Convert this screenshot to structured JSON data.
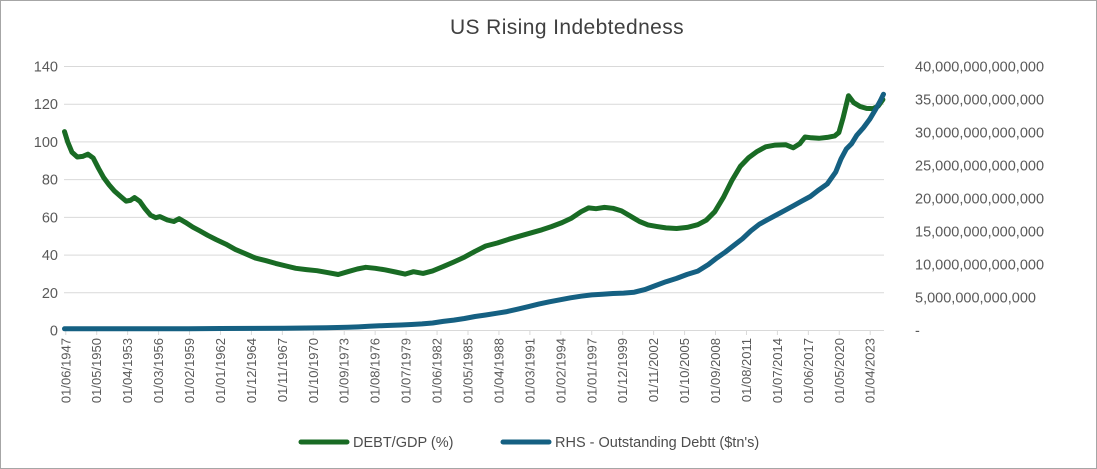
{
  "chart_data": {
    "type": "line",
    "title": "US Rising Indebtedness",
    "legend_position": "bottom",
    "grid": true,
    "legend": [
      {
        "label": "DEBT/GDP (%)",
        "color": "#196B24",
        "axis": "left"
      },
      {
        "label": "RHS - Outstanding Debtt ($tn's)",
        "color": "#156082",
        "axis": "right"
      }
    ],
    "left_axis": {
      "min": 0,
      "max": 140,
      "step": 20,
      "tick_labels": [
        "0",
        "20",
        "40",
        "60",
        "80",
        "100",
        "120",
        "140"
      ]
    },
    "right_axis": {
      "min": 0,
      "max": 40000000000000,
      "step": 5000000000000,
      "tick_labels": [
        "-",
        "5,000,000,000,000",
        "10,000,000,000,000",
        "15,000,000,000,000",
        "20,000,000,000,000",
        "25,000,000,000,000",
        "30,000,000,000,000",
        "35,000,000,000,000",
        "40,000,000,000,000"
      ]
    },
    "x_axis": {
      "tick_labels": [
        "01/06/1947",
        "01/05/1950",
        "01/04/1953",
        "01/03/1956",
        "01/02/1959",
        "01/01/1962",
        "01/12/1964",
        "01/11/1967",
        "01/10/1970",
        "01/09/1973",
        "01/08/1976",
        "01/07/1979",
        "01/06/1982",
        "01/05/1985",
        "01/04/1988",
        "01/03/1991",
        "01/02/1994",
        "01/01/1997",
        "01/12/1999",
        "01/11/2002",
        "01/10/2005",
        "01/09/2008",
        "01/08/2011",
        "01/07/2014",
        "01/06/2017",
        "01/05/2020",
        "01/04/2023"
      ],
      "first_tick_year": 1947.417,
      "tick_interval_years": 2.91667,
      "domain_start_year": 1947.25,
      "domain_end_year": 2024.55
    },
    "series": [
      {
        "name": "DEBT/GDP (%)",
        "axis": "left",
        "color": "#196B24",
        "points": [
          [
            1947.3,
            105.5
          ],
          [
            1947.6,
            100
          ],
          [
            1948.0,
            94.5
          ],
          [
            1948.5,
            92
          ],
          [
            1949.0,
            92.3
          ],
          [
            1949.5,
            93.5
          ],
          [
            1950.0,
            91.5
          ],
          [
            1950.5,
            86
          ],
          [
            1951.0,
            81
          ],
          [
            1951.5,
            77.2
          ],
          [
            1952.0,
            74
          ],
          [
            1952.6,
            71
          ],
          [
            1953.1,
            68.6
          ],
          [
            1953.5,
            69
          ],
          [
            1953.9,
            70.5
          ],
          [
            1954.4,
            68.5
          ],
          [
            1954.9,
            64.5
          ],
          [
            1955.4,
            61.2
          ],
          [
            1955.9,
            59.8
          ],
          [
            1956.3,
            60.4
          ],
          [
            1957.0,
            58.6
          ],
          [
            1957.6,
            57.8
          ],
          [
            1958.1,
            59.3
          ],
          [
            1958.7,
            57.3
          ],
          [
            1959.4,
            54.8
          ],
          [
            1960.0,
            53
          ],
          [
            1960.8,
            50.5
          ],
          [
            1961.6,
            48.2
          ],
          [
            1962.5,
            45.8
          ],
          [
            1963.4,
            43
          ],
          [
            1964.4,
            40.6
          ],
          [
            1965.3,
            38.4
          ],
          [
            1966.3,
            37
          ],
          [
            1967.2,
            35.6
          ],
          [
            1968.2,
            34.2
          ],
          [
            1969.1,
            33
          ],
          [
            1970.1,
            32.3
          ],
          [
            1971.1,
            31.7
          ],
          [
            1972.1,
            30.7
          ],
          [
            1973.1,
            29.7
          ],
          [
            1974.0,
            31.2
          ],
          [
            1974.9,
            32.6
          ],
          [
            1975.7,
            33.5
          ],
          [
            1976.6,
            33
          ],
          [
            1977.5,
            32.2
          ],
          [
            1978.5,
            31
          ],
          [
            1979.4,
            29.9
          ],
          [
            1980.2,
            31.2
          ],
          [
            1981.1,
            30.3
          ],
          [
            1982.0,
            31.6
          ],
          [
            1983.0,
            33.9
          ],
          [
            1984.0,
            36.3
          ],
          [
            1985.0,
            38.9
          ],
          [
            1986.0,
            42
          ],
          [
            1987.0,
            44.8
          ],
          [
            1988.1,
            46.4
          ],
          [
            1989.2,
            48.4
          ],
          [
            1990.3,
            50.2
          ],
          [
            1991.3,
            51.8
          ],
          [
            1992.3,
            53.4
          ],
          [
            1993.2,
            55.1
          ],
          [
            1994.2,
            57.2
          ],
          [
            1995.1,
            59.6
          ],
          [
            1996.0,
            63
          ],
          [
            1996.7,
            65
          ],
          [
            1997.4,
            64.6
          ],
          [
            1998.2,
            65.3
          ],
          [
            1999.0,
            64.8
          ],
          [
            1999.8,
            63.4
          ],
          [
            2000.6,
            60.8
          ],
          [
            2001.5,
            57.8
          ],
          [
            2002.3,
            56
          ],
          [
            2003.1,
            55.2
          ],
          [
            2004.0,
            54.4
          ],
          [
            2005.0,
            54.1
          ],
          [
            2006.0,
            54.7
          ],
          [
            2007.0,
            56.1
          ],
          [
            2007.8,
            58.5
          ],
          [
            2008.6,
            63
          ],
          [
            2009.4,
            70.5
          ],
          [
            2010.2,
            79.5
          ],
          [
            2011.0,
            87
          ],
          [
            2011.8,
            91.7
          ],
          [
            2012.6,
            95
          ],
          [
            2013.4,
            97.4
          ],
          [
            2014.3,
            98.3
          ],
          [
            2015.3,
            98.5
          ],
          [
            2016.0,
            96.9
          ],
          [
            2016.6,
            99
          ],
          [
            2017.1,
            102.6
          ],
          [
            2017.7,
            102.2
          ],
          [
            2018.4,
            101.9
          ],
          [
            2019.2,
            102.4
          ],
          [
            2019.9,
            103.2
          ],
          [
            2020.3,
            105
          ],
          [
            2020.7,
            113
          ],
          [
            2021.2,
            124.5
          ],
          [
            2021.7,
            120.8
          ],
          [
            2022.3,
            118.8
          ],
          [
            2022.9,
            117.8
          ],
          [
            2023.5,
            117.7
          ],
          [
            2024.0,
            119
          ],
          [
            2024.45,
            122.5
          ]
        ]
      },
      {
        "name": "RHS - Outstanding Debtt ($tn's)",
        "axis": "right",
        "color": "#156082",
        "points_unit": "trillions_usd",
        "points": [
          [
            1947.3,
            0.26
          ],
          [
            1950,
            0.26
          ],
          [
            1953,
            0.27
          ],
          [
            1956,
            0.27
          ],
          [
            1959,
            0.28
          ],
          [
            1962,
            0.3
          ],
          [
            1965,
            0.32
          ],
          [
            1968,
            0.35
          ],
          [
            1970,
            0.38
          ],
          [
            1972,
            0.43
          ],
          [
            1974,
            0.48
          ],
          [
            1975,
            0.54
          ],
          [
            1976,
            0.63
          ],
          [
            1977,
            0.71
          ],
          [
            1978,
            0.78
          ],
          [
            1979,
            0.83
          ],
          [
            1980,
            0.91
          ],
          [
            1981,
            1.0
          ],
          [
            1982,
            1.14
          ],
          [
            1983,
            1.38
          ],
          [
            1984,
            1.57
          ],
          [
            1985,
            1.82
          ],
          [
            1986,
            2.12
          ],
          [
            1987,
            2.35
          ],
          [
            1988,
            2.6
          ],
          [
            1989,
            2.87
          ],
          [
            1990,
            3.23
          ],
          [
            1991,
            3.6
          ],
          [
            1992,
            4.0
          ],
          [
            1993,
            4.35
          ],
          [
            1994,
            4.65
          ],
          [
            1995,
            4.95
          ],
          [
            1996,
            5.2
          ],
          [
            1997,
            5.4
          ],
          [
            1998,
            5.5
          ],
          [
            1999,
            5.6
          ],
          [
            2000,
            5.67
          ],
          [
            2001,
            5.8
          ],
          [
            2002,
            6.2
          ],
          [
            2003,
            6.8
          ],
          [
            2004,
            7.4
          ],
          [
            2005,
            7.9
          ],
          [
            2006,
            8.5
          ],
          [
            2007,
            9.0
          ],
          [
            2008,
            10.0
          ],
          [
            2008.8,
            11.0
          ],
          [
            2009.6,
            11.9
          ],
          [
            2010.4,
            12.9
          ],
          [
            2011.2,
            13.9
          ],
          [
            2012,
            15.1
          ],
          [
            2012.8,
            16.1
          ],
          [
            2013.6,
            16.8
          ],
          [
            2014.4,
            17.5
          ],
          [
            2015.2,
            18.2
          ],
          [
            2016,
            18.9
          ],
          [
            2016.8,
            19.6
          ],
          [
            2017.6,
            20.3
          ],
          [
            2018.4,
            21.3
          ],
          [
            2019.2,
            22.2
          ],
          [
            2020,
            24.0
          ],
          [
            2020.5,
            26.0
          ],
          [
            2021,
            27.5
          ],
          [
            2021.5,
            28.3
          ],
          [
            2022,
            29.6
          ],
          [
            2022.6,
            30.7
          ],
          [
            2023.2,
            32.0
          ],
          [
            2023.8,
            33.6
          ],
          [
            2024.2,
            34.8
          ],
          [
            2024.5,
            35.8
          ]
        ]
      }
    ],
    "colors": {
      "grid": "#d9d9d9",
      "axis_text": "#595959",
      "title_text": "#404040",
      "background": "#ffffff",
      "border": "#a6a6a6"
    }
  }
}
